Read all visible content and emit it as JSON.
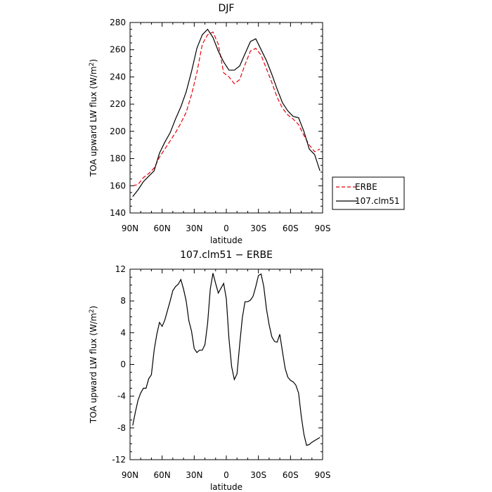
{
  "chart_data": [
    {
      "type": "line",
      "title": "DJF",
      "xlabel": "latitude",
      "ylabel": "TOA upward LW flux (W/m",
      "ylabel_sup": "2",
      "ylabel_close": ")",
      "xlim": [
        90,
        -90
      ],
      "ylim": [
        140,
        280
      ],
      "yticks": [
        140,
        160,
        180,
        200,
        220,
        240,
        260,
        280
      ],
      "xticks": [
        {
          "value": 90,
          "label": "90N"
        },
        {
          "value": 60,
          "label": "60N"
        },
        {
          "value": 30,
          "label": "30N"
        },
        {
          "value": 0,
          "label": "0"
        },
        {
          "value": -30,
          "label": "30S"
        },
        {
          "value": -60,
          "label": "60S"
        },
        {
          "value": -90,
          "label": "90S"
        }
      ],
      "legend_position": "outside-right",
      "series": [
        {
          "name": "ERBE",
          "color": "#e8000b",
          "dash": "dashed",
          "x": [
            87.5,
            82.5,
            77.5,
            72.5,
            67.5,
            62.5,
            57.5,
            52.5,
            47.5,
            42.5,
            37.5,
            32.5,
            27.5,
            22.5,
            17.5,
            12.5,
            7.5,
            2.5,
            -2.5,
            -7.5,
            -12.5,
            -17.5,
            -22.5,
            -27.5,
            -32.5,
            -37.5,
            -42.5,
            -47.5,
            -52.5,
            -57.5,
            -62.5,
            -67.5,
            -72.5,
            -77.5,
            -82.5,
            -87.5
          ],
          "y": [
            160,
            161,
            166,
            169,
            173,
            181,
            187,
            193,
            199,
            206,
            214,
            227,
            243,
            264,
            271,
            273,
            264,
            243,
            240,
            235,
            238,
            249,
            259,
            261,
            256,
            246,
            236,
            225,
            217,
            212,
            209,
            205,
            197,
            190,
            185,
            187
          ]
        },
        {
          "name": "107.clm51",
          "color": "#000000",
          "dash": "solid",
          "x": [
            87.5,
            82.5,
            77.5,
            72.5,
            67.5,
            62.5,
            57.5,
            52.5,
            47.5,
            42.5,
            37.5,
            32.5,
            27.5,
            22.5,
            17.5,
            12.5,
            7.5,
            2.5,
            -2.5,
            -7.5,
            -12.5,
            -17.5,
            -22.5,
            -27.5,
            -32.5,
            -37.5,
            -42.5,
            -47.5,
            -52.5,
            -57.5,
            -62.5,
            -67.5,
            -72.5,
            -77.5,
            -82.5,
            -87.5
          ],
          "y": [
            152,
            157,
            163,
            167,
            171,
            184,
            192,
            199,
            209,
            218,
            229,
            244,
            261,
            271,
            275,
            269,
            259,
            251,
            245,
            245,
            248,
            257,
            266,
            268,
            260,
            252,
            242,
            231,
            221,
            215,
            211,
            210,
            200,
            187,
            183,
            171
          ]
        }
      ]
    },
    {
      "type": "line",
      "title": "107.clm51 − ERBE",
      "xlabel": "latitude",
      "ylabel": "TOA upward LW flux (W/m",
      "ylabel_sup": "2",
      "ylabel_close": ")",
      "xlim": [
        90,
        -90
      ],
      "ylim": [
        -12,
        12
      ],
      "yticks": [
        -12,
        -8,
        -4,
        0,
        4,
        8,
        12
      ],
      "xticks": [
        {
          "value": 90,
          "label": "90N"
        },
        {
          "value": 60,
          "label": "60N"
        },
        {
          "value": 30,
          "label": "30N"
        },
        {
          "value": 0,
          "label": "0"
        },
        {
          "value": -30,
          "label": "30S"
        },
        {
          "value": -60,
          "label": "60S"
        },
        {
          "value": -90,
          "label": "90S"
        }
      ],
      "series": [
        {
          "color": "#000000",
          "dash": "solid",
          "x": [
            87.5,
            85,
            82.5,
            80,
            77.5,
            75,
            72.5,
            70,
            67.5,
            65,
            62.5,
            60,
            57.5,
            55,
            52.5,
            50,
            47.5,
            45,
            42.5,
            40,
            37.5,
            35,
            32.5,
            30,
            27.5,
            25,
            22.5,
            20,
            17.5,
            15,
            12.5,
            10,
            7.5,
            5,
            2.5,
            0,
            -2.5,
            -5,
            -7.5,
            -10,
            -12.5,
            -15,
            -17.5,
            -20,
            -22.5,
            -25,
            -27.5,
            -30,
            -32.5,
            -35,
            -37.5,
            -40,
            -42.5,
            -45,
            -47.5,
            -50,
            -52.5,
            -55,
            -57.5,
            -60,
            -62.5,
            -65,
            -67.5,
            -70,
            -72.5,
            -75,
            -77.5,
            -80,
            -82.5,
            -85,
            -87.5
          ],
          "y": [
            -7.7,
            -6,
            -4.5,
            -3.6,
            -3,
            -3,
            -1.8,
            -1.3,
            1.8,
            3.8,
            5.3,
            4.8,
            5.6,
            6.8,
            8,
            9.3,
            9.8,
            10.1,
            10.7,
            9.5,
            8,
            5.5,
            4.2,
            2,
            1.5,
            1.8,
            1.8,
            2.5,
            5.2,
            9.5,
            11.5,
            10.2,
            9,
            9.6,
            10.2,
            8.3,
            3.2,
            -0.3,
            -1.9,
            -1.2,
            2.5,
            5.9,
            7.9,
            7.9,
            8.1,
            8.6,
            9.8,
            11.2,
            11.4,
            9.8,
            7,
            5,
            3.5,
            2.9,
            2.8,
            3.8,
            1.6,
            -0.5,
            -1.6,
            -2,
            -2.2,
            -2.6,
            -3.6,
            -6.5,
            -8.8,
            -10.2,
            -10.1,
            -9.8,
            -9.6,
            -9.4,
            -9.2
          ]
        }
      ]
    }
  ]
}
